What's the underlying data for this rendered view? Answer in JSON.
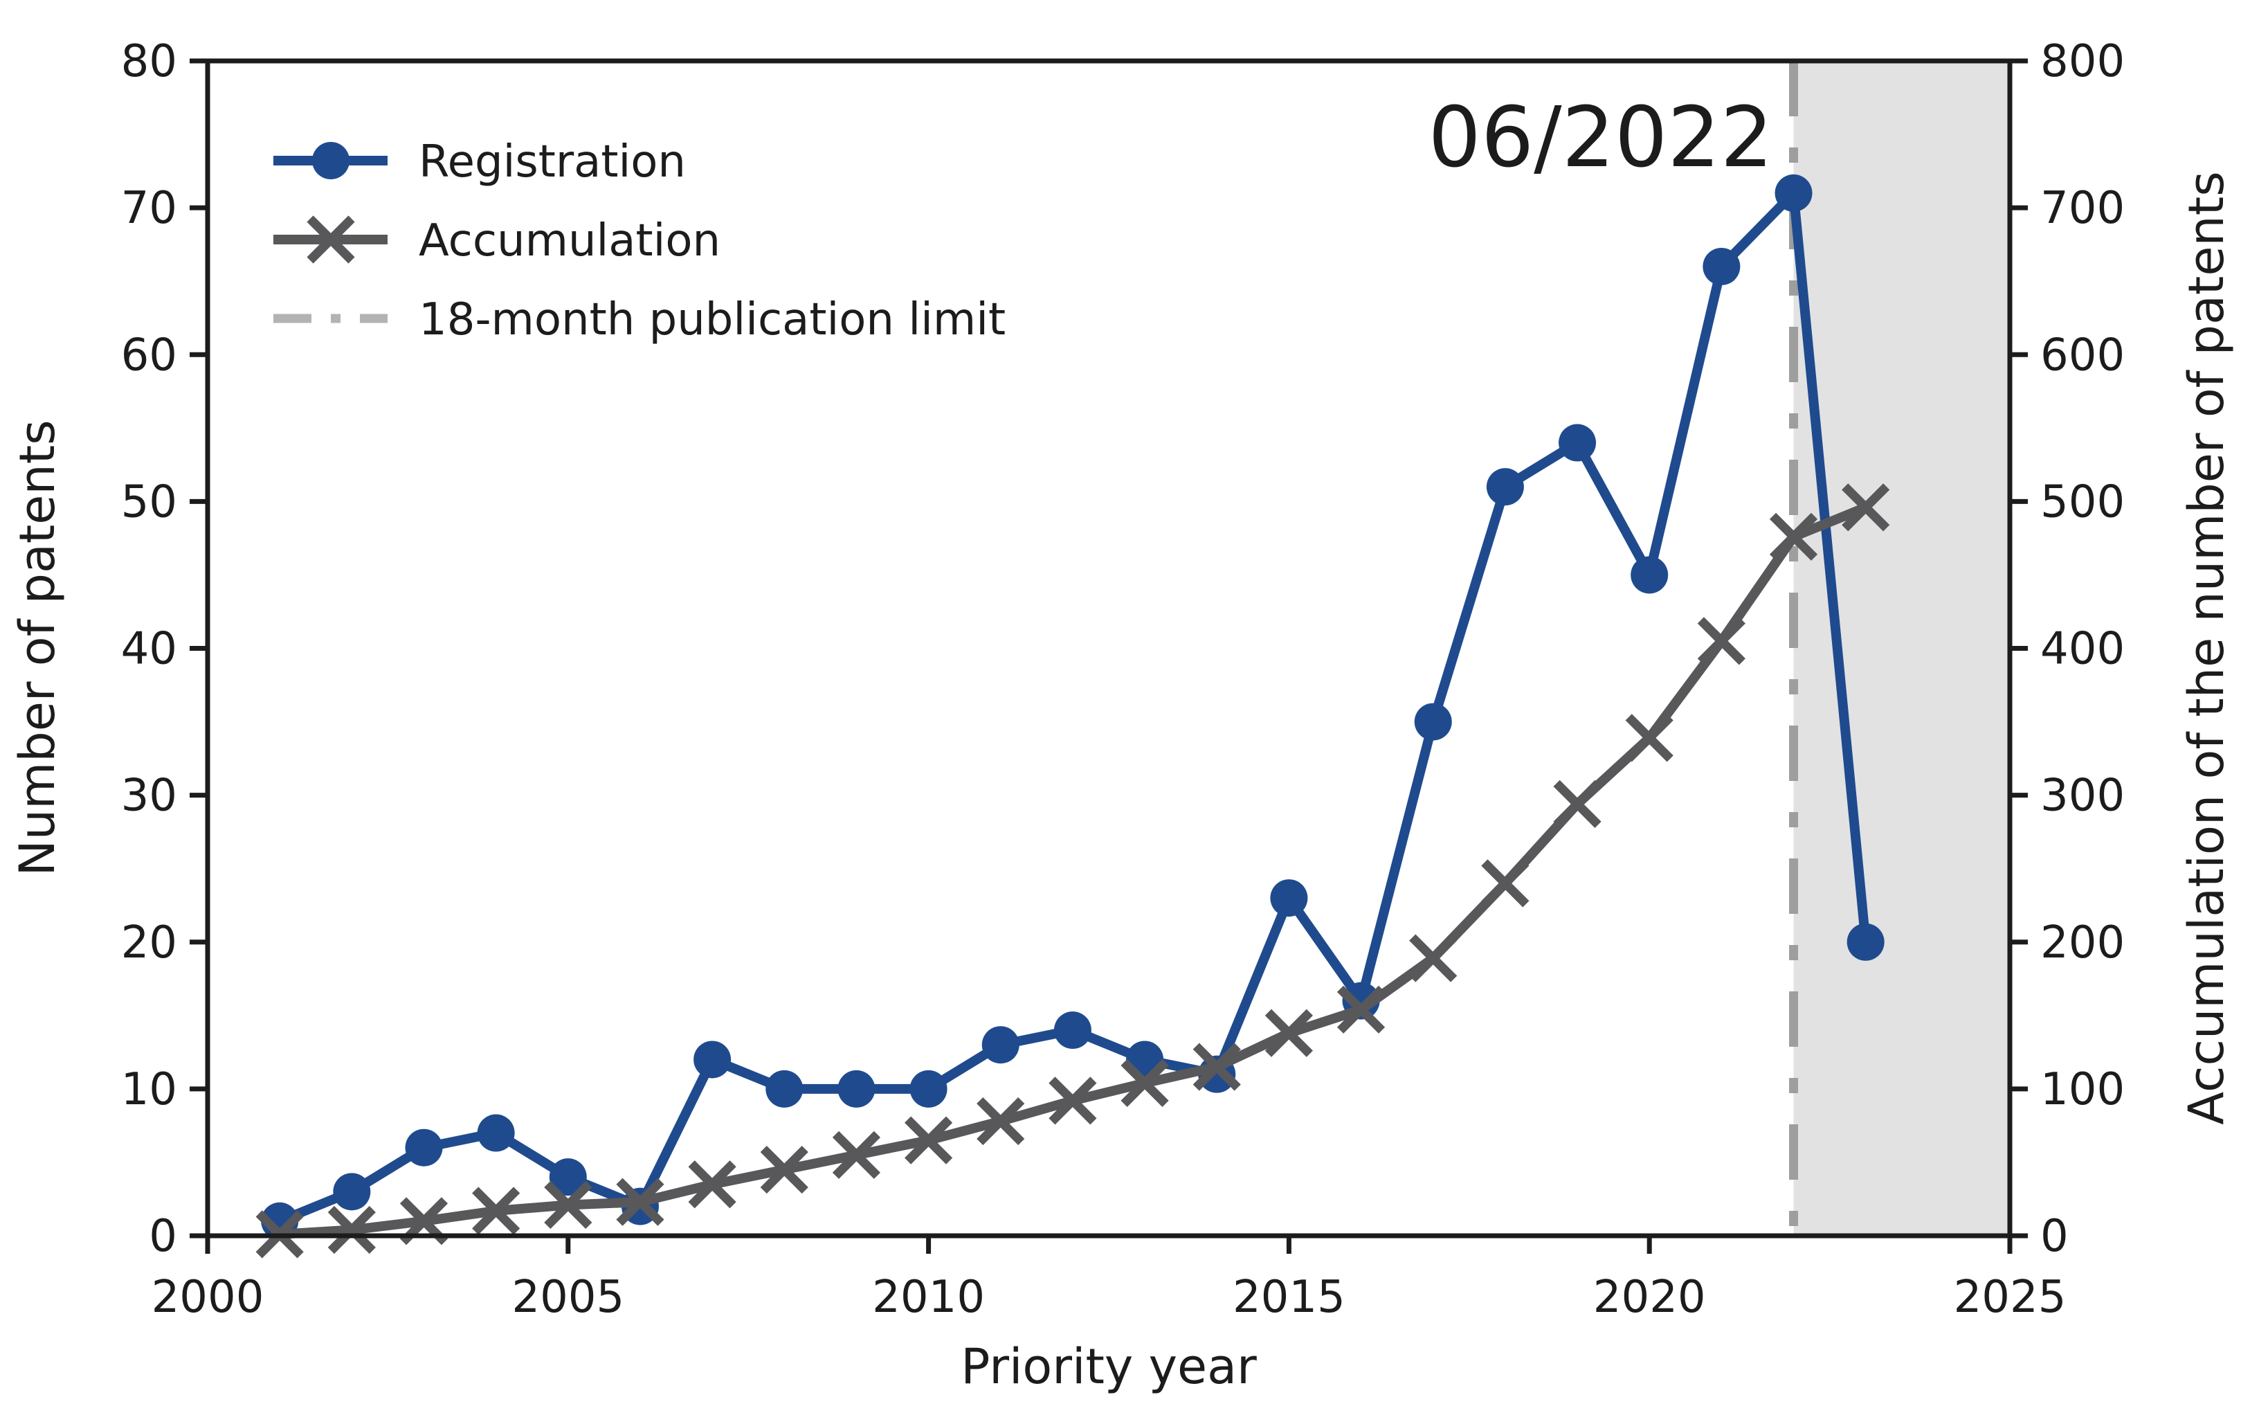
{
  "chart_data": {
    "type": "line",
    "annotation": {
      "text": "06/2022"
    },
    "x": [
      2001,
      2002,
      2003,
      2004,
      2005,
      2006,
      2007,
      2008,
      2009,
      2010,
      2011,
      2012,
      2013,
      2014,
      2015,
      2016,
      2017,
      2018,
      2019,
      2020,
      2021,
      2022,
      2023
    ],
    "series": [
      {
        "name": "Registration",
        "axis": "left",
        "marker": "circle",
        "color": "#1f4b8e",
        "values": [
          1,
          3,
          6,
          7,
          4,
          2,
          12,
          10,
          10,
          10,
          13,
          14,
          12,
          11,
          23,
          16,
          35,
          51,
          54,
          45,
          66,
          71,
          20
        ]
      },
      {
        "name": "Accumulation",
        "axis": "right",
        "marker": "x",
        "color": "#58585a",
        "values": [
          1,
          4,
          10,
          17,
          21,
          23,
          35,
          45,
          55,
          65,
          78,
          92,
          104,
          115,
          138,
          154,
          189,
          240,
          294,
          339,
          405,
          476,
          496
        ]
      }
    ],
    "vline": {
      "label": "18-month publication limit",
      "x": 2022,
      "color": "#9e9e9e",
      "style": "dash-dot"
    },
    "shaded_region": {
      "from": 2022,
      "to": 2025,
      "color": "#e2e2e2"
    },
    "x_axis": {
      "label": "Priority year",
      "range": [
        2000,
        2025
      ],
      "ticks": [
        2000,
        2005,
        2010,
        2015,
        2020,
        2025
      ]
    },
    "y_left": {
      "label": "Number of patents",
      "range": [
        0,
        80
      ],
      "ticks": [
        0,
        10,
        20,
        30,
        40,
        50,
        60,
        70,
        80
      ]
    },
    "y_right": {
      "label": "Accumulation of the number of patents",
      "range": [
        0,
        800
      ],
      "ticks": [
        0,
        100,
        200,
        300,
        400,
        500,
        600,
        700,
        800
      ]
    },
    "legend": {
      "position": "upper-left",
      "items": [
        {
          "label": "Registration"
        },
        {
          "label": "Accumulation"
        },
        {
          "label": "18-month publication limit"
        }
      ]
    },
    "axis_color": "#1c1c1c",
    "background": "#ffffff",
    "grid": false
  }
}
